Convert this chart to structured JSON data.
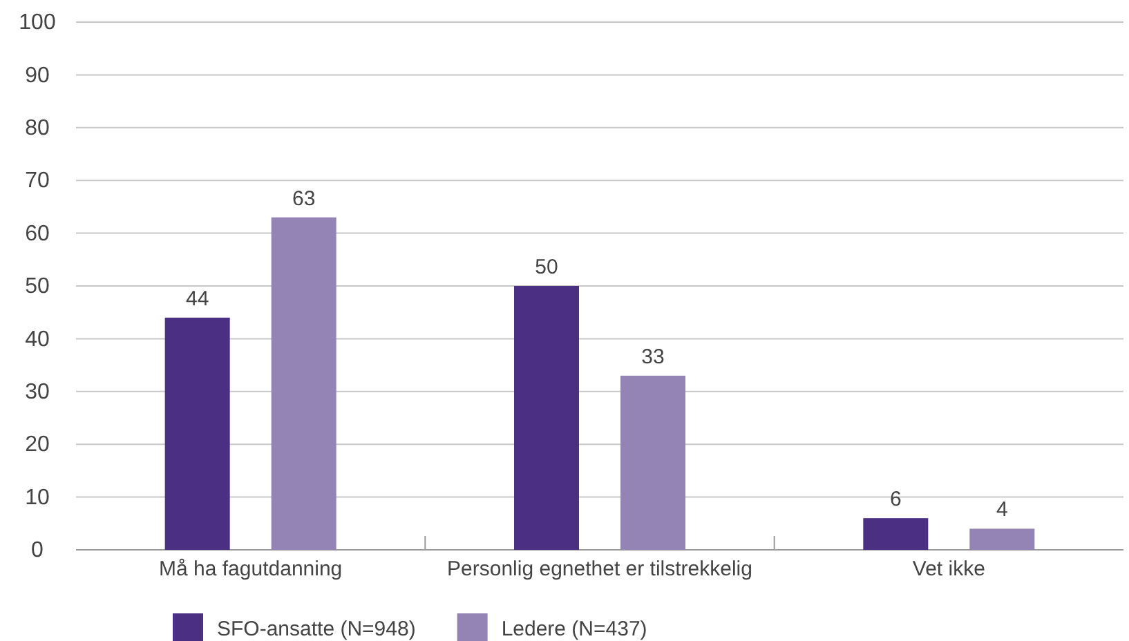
{
  "chart_data": {
    "type": "bar",
    "categories": [
      "Må ha fagutdanning",
      "Personlig egnethet er tilstrekkelig",
      "Vet ikke"
    ],
    "series": [
      {
        "name": "SFO-ansatte (N=948)",
        "color": "#4b2f82",
        "values": [
          44,
          50,
          6
        ]
      },
      {
        "name": "Ledere (N=437)",
        "color": "#9484b6",
        "values": [
          63,
          33,
          4
        ]
      }
    ],
    "ylim": [
      0,
      100
    ],
    "yticks": [
      0,
      10,
      20,
      30,
      40,
      50,
      60,
      70,
      80,
      90,
      100
    ],
    "grid": "y",
    "legend": "bottom left",
    "data_labels": true
  }
}
